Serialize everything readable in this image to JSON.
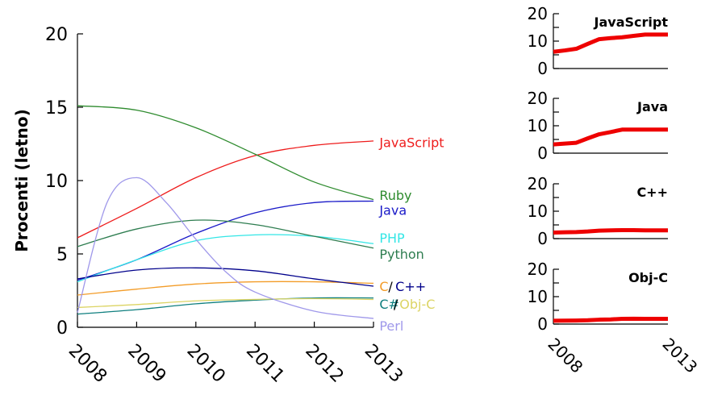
{
  "chart_data": [
    {
      "type": "line",
      "ylabel": "Procenti (letno)",
      "xlim": [
        2008,
        2013
      ],
      "ylim": [
        0,
        20
      ],
      "x_ticks": [
        "2008",
        "2009",
        "2010",
        "2011",
        "2012",
        "2013"
      ],
      "y_ticks": [
        "0",
        "5",
        "10",
        "15",
        "20"
      ],
      "grid": false,
      "series": [
        {
          "name": "JavaScript",
          "color": "#ee1c1c",
          "x": [
            2008,
            2009,
            2010,
            2011,
            2012,
            2013
          ],
          "y": [
            6.1,
            8.1,
            10.2,
            11.7,
            12.4,
            12.7
          ]
        },
        {
          "name": "Ruby",
          "color": "#2e8b2e",
          "x": [
            2008,
            2009,
            2010,
            2011,
            2012,
            2013
          ],
          "y": [
            15.1,
            14.8,
            13.6,
            11.8,
            9.9,
            8.7
          ]
        },
        {
          "name": "Java",
          "color": "#1a1ac8",
          "x": [
            2008,
            2009,
            2010,
            2011,
            2012,
            2013
          ],
          "y": [
            3.2,
            4.6,
            6.4,
            7.8,
            8.5,
            8.6
          ]
        },
        {
          "name": "PHP",
          "color": "#33e6e6",
          "x": [
            2008,
            2009,
            2010,
            2011,
            2012,
            2013
          ],
          "y": [
            3.1,
            4.6,
            5.9,
            6.3,
            6.2,
            5.7
          ]
        },
        {
          "name": "Python",
          "color": "#2e7d50",
          "x": [
            2008,
            2009,
            2010,
            2011,
            2012,
            2013
          ],
          "y": [
            5.5,
            6.7,
            7.3,
            7.0,
            6.2,
            5.4
          ]
        },
        {
          "name": "C",
          "color": "#f39c28",
          "x": [
            2008,
            2009,
            2010,
            2011,
            2012,
            2013
          ],
          "y": [
            2.2,
            2.6,
            2.95,
            3.1,
            3.1,
            3.0
          ]
        },
        {
          "name": "C++",
          "color": "#00008b",
          "x": [
            2008,
            2009,
            2010,
            2011,
            2012,
            2013
          ],
          "y": [
            3.3,
            3.9,
            4.05,
            3.85,
            3.3,
            2.8
          ]
        },
        {
          "name": "C#",
          "color": "#0f7f7f",
          "x": [
            2008,
            2009,
            2010,
            2011,
            2012,
            2013
          ],
          "y": [
            0.9,
            1.2,
            1.6,
            1.85,
            2.0,
            2.0
          ]
        },
        {
          "name": "Obj-C",
          "color": "#dcd464",
          "x": [
            2008,
            2009,
            2010,
            2011,
            2012,
            2013
          ],
          "y": [
            1.35,
            1.55,
            1.8,
            1.9,
            1.95,
            1.9
          ]
        },
        {
          "name": "Perl",
          "color": "#9f98ea",
          "x": [
            2008,
            2008.5,
            2009,
            2009.5,
            2010,
            2010.5,
            2011,
            2012,
            2013
          ],
          "y": [
            1.0,
            8.5,
            10.2,
            8.5,
            6.0,
            3.8,
            2.4,
            1.1,
            0.6
          ]
        }
      ],
      "labels": [
        {
          "text": "JavaScript",
          "color": "#ee1c1c",
          "x": 2013.1,
          "y": 12.6
        },
        {
          "text": "Ruby",
          "color": "#2e8b2e",
          "x": 2013.1,
          "y": 9.0
        },
        {
          "text": "Java",
          "color": "#1a1ac8",
          "x": 2013.1,
          "y": 8.0
        },
        {
          "text": "PHP",
          "color": "#33e6e6",
          "x": 2013.1,
          "y": 6.1
        },
        {
          "text": "Python",
          "color": "#2e7d50",
          "x": 2013.1,
          "y": 5.0
        },
        {
          "text": "C",
          "color": "#f39c28",
          "x": 2013.1,
          "y": 2.8
        },
        {
          "text": "/",
          "color": "#000000",
          "x": 2013.25,
          "y": 2.8
        },
        {
          "text": "C++",
          "color": "#00008b",
          "x": 2013.37,
          "y": 2.8
        },
        {
          "text": "C#",
          "color": "#0f7f7f",
          "x": 2013.1,
          "y": 1.6
        },
        {
          "text": "/",
          "color": "#000000",
          "x": 2013.34,
          "y": 1.6
        },
        {
          "text": "Obj-C",
          "color": "#dcd464",
          "x": 2013.44,
          "y": 1.6
        },
        {
          "text": "Perl",
          "color": "#9f98ea",
          "x": 2013.1,
          "y": 0.1
        }
      ]
    },
    {
      "type": "line",
      "title": "JavaScript",
      "color": "#ee0000",
      "xlim": [
        2008,
        2013
      ],
      "ylim": [
        0,
        20
      ],
      "y_ticks": [
        "0",
        "10",
        "20"
      ],
      "x": [
        2008,
        2008.5,
        2009,
        2009.5,
        2010,
        2010.5,
        2011,
        2011.5,
        2012,
        2012.5,
        2013
      ],
      "y": [
        6.1,
        6.6,
        7.2,
        9.0,
        10.7,
        11.1,
        11.4,
        11.9,
        12.4,
        12.4,
        12.4
      ]
    },
    {
      "type": "line",
      "title": "Java",
      "color": "#ee0000",
      "xlim": [
        2008,
        2013
      ],
      "ylim": [
        0,
        20
      ],
      "y_ticks": [
        "0",
        "10",
        "20"
      ],
      "x": [
        2008,
        2008.5,
        2009,
        2009.5,
        2010,
        2010.5,
        2011,
        2011.5,
        2012,
        2012.5,
        2013
      ],
      "y": [
        3.2,
        3.5,
        3.8,
        5.4,
        6.9,
        7.7,
        8.6,
        8.6,
        8.6,
        8.6,
        8.6
      ]
    },
    {
      "type": "line",
      "title": "C++",
      "color": "#ee0000",
      "xlim": [
        2008,
        2013
      ],
      "ylim": [
        0,
        20
      ],
      "y_ticks": [
        "0",
        "10",
        "20"
      ],
      "x": [
        2008,
        2008.5,
        2009,
        2009.5,
        2010,
        2010.5,
        2011,
        2011.5,
        2012,
        2012.5,
        2013
      ],
      "y": [
        2.2,
        2.3,
        2.4,
        2.6,
        2.9,
        3.0,
        3.1,
        3.1,
        3.0,
        3.0,
        3.0
      ]
    },
    {
      "type": "line",
      "title": "Obj-C",
      "color": "#ee0000",
      "xlim": [
        2008,
        2013
      ],
      "ylim": [
        0,
        20
      ],
      "y_ticks": [
        "0",
        "10",
        "20"
      ],
      "x_ticks": [
        "2008",
        "2013"
      ],
      "x": [
        2008,
        2008.5,
        2009,
        2009.5,
        2010,
        2010.5,
        2011,
        2011.5,
        2012,
        2012.5,
        2013
      ],
      "y": [
        1.2,
        1.25,
        1.3,
        1.4,
        1.6,
        1.7,
        1.9,
        1.95,
        1.9,
        1.9,
        1.9
      ]
    }
  ]
}
